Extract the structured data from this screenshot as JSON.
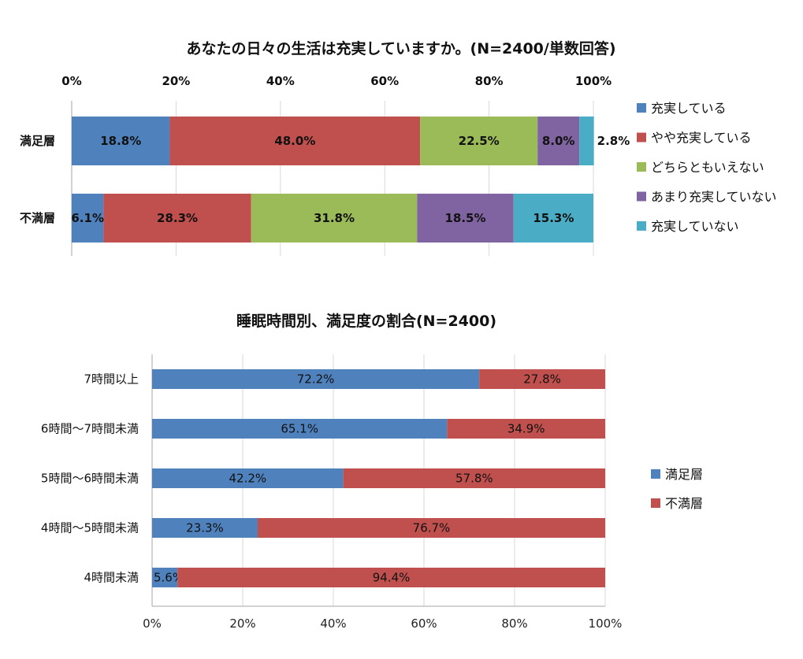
{
  "chart_data": [
    {
      "type": "bar",
      "orientation": "horizontal",
      "stacked": "percent",
      "title": "あなたの日々の生活は充実していますか。(N=2400/単数回答)",
      "categories": [
        "満足層",
        "不満層"
      ],
      "series": [
        {
          "name": "充実している",
          "values": [
            18.8,
            6.1
          ],
          "labels": [
            "18.8%",
            "6.1%"
          ],
          "color": "#4f81bd"
        },
        {
          "name": "やや充実している",
          "values": [
            48.0,
            28.3
          ],
          "labels": [
            "48.0%",
            "28.3%"
          ],
          "color": "#c0504d"
        },
        {
          "name": "どちらともいえない",
          "values": [
            22.5,
            31.8
          ],
          "labels": [
            "22.5%",
            "31.8%"
          ],
          "color": "#9bbb59"
        },
        {
          "name": "あまり充実していない",
          "values": [
            8.0,
            18.5
          ],
          "labels": [
            "8.0%",
            "18.5%"
          ],
          "color": "#8064a2"
        },
        {
          "name": "充実していない",
          "values": [
            2.8,
            15.3
          ],
          "labels": [
            "2.8%",
            "15.3%"
          ],
          "color": "#4bacc6"
        }
      ],
      "xlim": [
        0,
        100
      ],
      "xticks": [
        "0%",
        "20%",
        "40%",
        "60%",
        "80%",
        "100%"
      ],
      "axis_position": "top",
      "legend": "right",
      "grid": true
    },
    {
      "type": "bar",
      "orientation": "horizontal",
      "stacked": "percent",
      "title": "睡眠時間別、満足度の割合(N=2400)",
      "categories": [
        "7時間以上",
        "6時間～7時間未満",
        "5時間～6時間未満",
        "4時間～5時間未満",
        "4時間未満"
      ],
      "series": [
        {
          "name": "満足層",
          "values": [
            72.2,
            65.1,
            42.2,
            23.3,
            5.6
          ],
          "labels": [
            "72.2%",
            "65.1%",
            "42.2%",
            "23.3%",
            "5.6%"
          ],
          "color": "#4f81bd"
        },
        {
          "name": "不満層",
          "values": [
            27.8,
            34.9,
            57.8,
            76.7,
            94.4
          ],
          "labels": [
            "27.8%",
            "34.9%",
            "57.8%",
            "76.7%",
            "94.4%"
          ],
          "color": "#c0504d"
        }
      ],
      "xlim": [
        0,
        100
      ],
      "xticks": [
        "0%",
        "20%",
        "40%",
        "60%",
        "80%",
        "100%"
      ],
      "axis_position": "bottom",
      "legend": "right",
      "grid": true
    }
  ]
}
